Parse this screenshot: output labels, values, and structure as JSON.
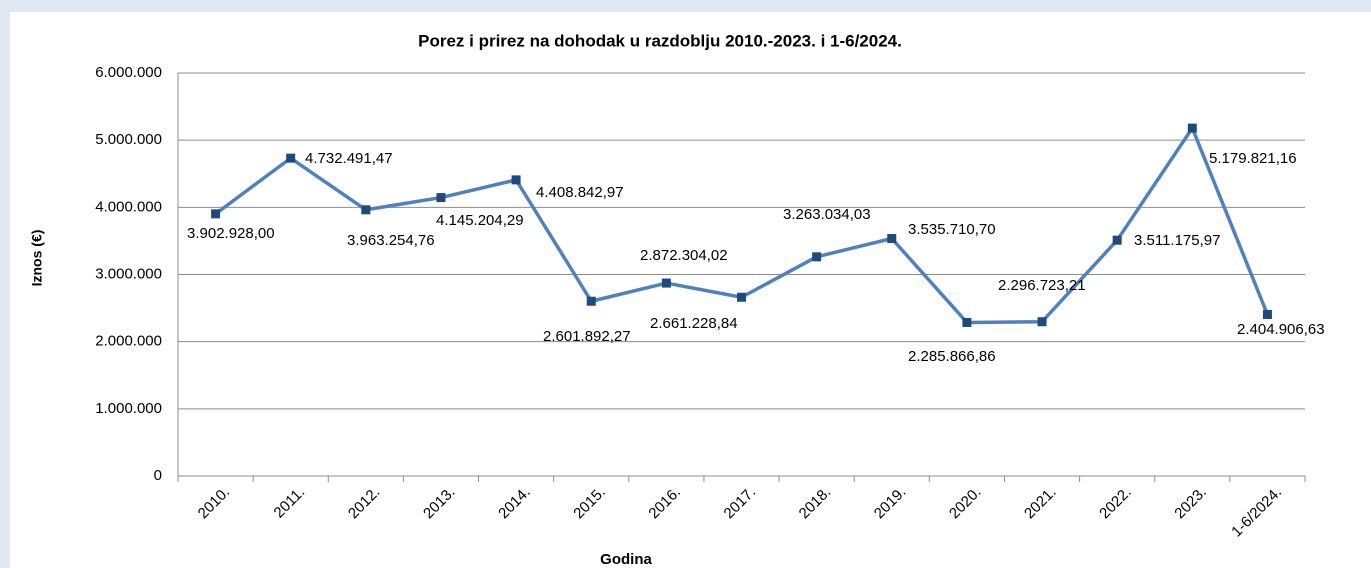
{
  "chart_data": {
    "type": "line",
    "title": "Porez i prirez na dohodak u razdoblju 2010.-2023. i 1-6/2024.",
    "x_label": "Godina",
    "y_label": "Iznos (€)",
    "categories": [
      "2010.",
      "2011.",
      "2012.",
      "2013.",
      "2014.",
      "2015.",
      "2016.",
      "2017.",
      "2018.",
      "2019.",
      "2020.",
      "2021.",
      "2022.",
      "2023.",
      "1-6/2024."
    ],
    "series": [
      {
        "name": "Iznos",
        "color": "#4f81bd",
        "values": [
          3902928.0,
          4732491.47,
          3963254.76,
          4145204.29,
          4408842.97,
          2601892.27,
          2872304.02,
          2661228.84,
          3263034.03,
          3535710.7,
          2285866.86,
          2296723.21,
          3511175.97,
          5179821.16,
          2404906.63
        ],
        "value_labels": [
          "3.902.928,00",
          "4.732.491,47",
          "3.963.254,76",
          "4.145.204,29",
          "4.408.842,97",
          "2.601.892,27",
          "2.872.304,02",
          "2.661.228,84",
          "3.263.034,03",
          "3.535.710,70",
          "2.285.866,86",
          "2.296.723,21",
          "3.511.175,97",
          "5.179.821,16",
          "2.404.906,63"
        ]
      }
    ],
    "ylim": [
      0,
      6000000
    ],
    "yticks": [
      0,
      {
        "value": 1000000,
        "label": "1.000.000"
      },
      {
        "value": 2000000,
        "label": "2.000.000"
      },
      {
        "value": 3000000,
        "label": "3.000.000"
      },
      {
        "value": 4000000,
        "label": "4.000.000"
      },
      {
        "value": 5000000,
        "label": "5.000.000"
      },
      {
        "value": 6000000,
        "label": "6.000.000"
      }
    ],
    "grid": true
  }
}
